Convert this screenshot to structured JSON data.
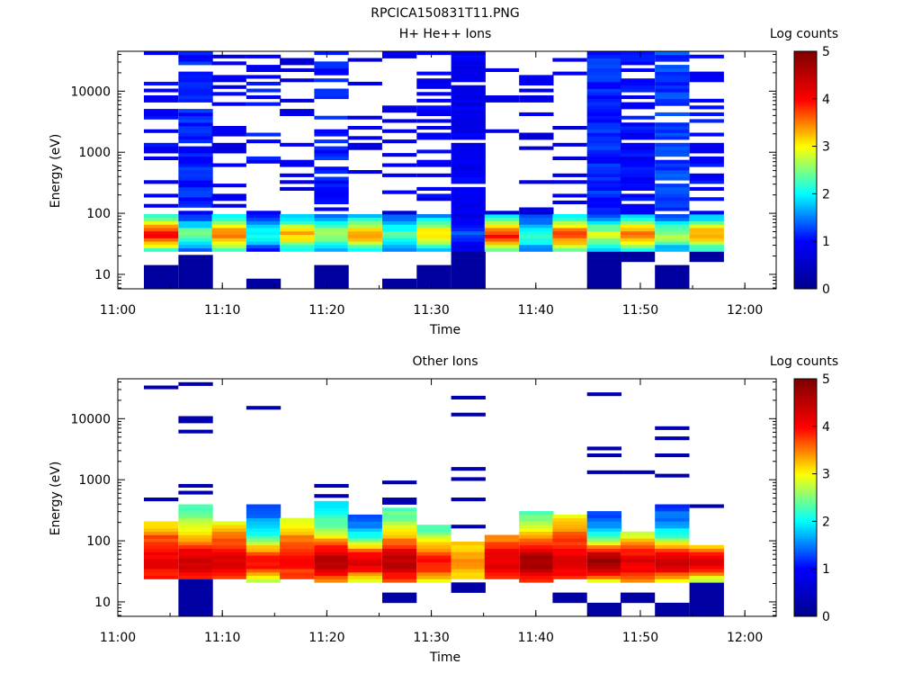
{
  "figure_title": "RPCICA150831T11.PNG",
  "colors": {
    "colormap": [
      "#00008f",
      "#0000ff",
      "#00ffff",
      "#ffff00",
      "#ff0000",
      "#800000"
    ],
    "axes": "#000000",
    "background": "#ffffff"
  },
  "chart_data": [
    {
      "type": "heatmap",
      "title": "H+ He++ Ions",
      "xlabel": "Time",
      "ylabel": "Energy (eV)",
      "colorbar_label": "Log counts",
      "colorbar_range": [
        0,
        5
      ],
      "colorbar_ticks": [
        "0",
        "1",
        "2",
        "3",
        "4",
        "5"
      ],
      "x_ticks": [
        "11:00",
        "11:10",
        "11:20",
        "11:30",
        "11:40",
        "11:50",
        "12:00"
      ],
      "x_range_minutes": [
        0,
        63
      ],
      "y_scale": "log",
      "y_range": [
        5.8,
        45000
      ],
      "y_ticks": [
        "10",
        "100",
        "1000",
        "10000"
      ],
      "y_tick_values": [
        10,
        100,
        1000,
        10000
      ],
      "time_bins_minutes": [
        2.5,
        5.8,
        9.0,
        12.3,
        15.5,
        18.8,
        22.0,
        25.3,
        28.6,
        31.9,
        35.1,
        38.4,
        41.6,
        44.9,
        48.1,
        51.4,
        54.7
      ],
      "bins": [
        {
          "dense": 0.4,
          "high_level": 0.75,
          "low_level": 4.0,
          "has_low": true,
          "low_start": 5.8,
          "low_end": 15
        },
        {
          "dense": 0.95,
          "high_level": 0.95,
          "low_level": 2.4,
          "has_low": true,
          "low_start": 5.8,
          "low_end": 20
        },
        {
          "dense": 0.3,
          "high_level": 0.7,
          "low_level": 3.6,
          "has_low": false
        },
        {
          "dense": 0.4,
          "high_level": 0.85,
          "low_level": 2.0,
          "has_low": true,
          "low_start": 5.8,
          "low_end": 9
        },
        {
          "dense": 0.25,
          "high_level": 0.6,
          "low_level": 3.3,
          "has_low": false
        },
        {
          "dense": 0.65,
          "high_level": 0.9,
          "low_level": 2.6,
          "has_low": true,
          "low_start": 5.8,
          "low_end": 15
        },
        {
          "dense": 0.15,
          "high_level": 0.6,
          "low_level": 3.4,
          "has_low": false
        },
        {
          "dense": 0.35,
          "high_level": 0.6,
          "low_level": 2.3,
          "has_low": true,
          "low_start": 5.8,
          "low_end": 9
        },
        {
          "dense": 0.45,
          "high_level": 0.7,
          "low_level": 3.2,
          "has_low": true,
          "low_start": 5.8,
          "low_end": 15
        },
        {
          "dense": 0.95,
          "high_level": 0.7,
          "low_level": 1.4,
          "has_low": true,
          "low_start": 5.8,
          "low_end": 26
        },
        {
          "dense": 0.05,
          "high_level": 0.6,
          "low_level": 3.9,
          "has_low": false
        },
        {
          "dense": 0.25,
          "high_level": 0.6,
          "low_level": 2.3,
          "has_low": false
        },
        {
          "dense": 0.2,
          "high_level": 0.6,
          "low_level": 3.8,
          "has_low": false
        },
        {
          "dense": 1.0,
          "high_level": 0.95,
          "low_level": 2.8,
          "has_low": true,
          "low_start": 5.8,
          "low_end": 25
        },
        {
          "dense": 0.7,
          "high_level": 0.8,
          "low_level": 3.5,
          "has_low": true,
          "low_start": 16,
          "low_end": 25
        },
        {
          "dense": 0.85,
          "high_level": 1.05,
          "low_level": 2.7,
          "has_low": true,
          "low_start": 5.8,
          "low_end": 15
        },
        {
          "dense": 0.55,
          "high_level": 0.8,
          "low_level": 3.4,
          "has_low": true,
          "low_start": 16,
          "low_end": 25
        }
      ]
    },
    {
      "type": "heatmap",
      "title": "Other Ions",
      "xlabel": "Time",
      "ylabel": "Energy (eV)",
      "colorbar_label": "Log counts",
      "colorbar_range": [
        0,
        5
      ],
      "colorbar_ticks": [
        "0",
        "1",
        "2",
        "3",
        "4",
        "5"
      ],
      "x_ticks": [
        "11:00",
        "11:10",
        "11:20",
        "11:30",
        "11:40",
        "11:50",
        "12:00"
      ],
      "x_range_minutes": [
        0,
        63
      ],
      "y_scale": "log",
      "y_range": [
        5.8,
        45000
      ],
      "y_ticks": [
        "10",
        "100",
        "1000",
        "10000"
      ],
      "y_tick_values": [
        10,
        100,
        1000,
        10000
      ],
      "time_bins_minutes": [
        2.5,
        5.8,
        9.0,
        12.3,
        15.5,
        18.8,
        22.0,
        25.3,
        28.6,
        31.9,
        35.1,
        38.4,
        41.6,
        44.9,
        48.1,
        51.4,
        54.7
      ],
      "bins": [
        {
          "top": 200,
          "peak": 4.1,
          "base_level": 3.5,
          "base": 25,
          "lines": [
            33000,
            500
          ],
          "low_start": null,
          "low_end": null
        },
        {
          "top": 400,
          "peak": 4.4,
          "base_level": 3.0,
          "base": 25,
          "lines": [
            35000,
            11000,
            9000,
            6500,
            800,
            600
          ],
          "low_start": 5.8,
          "low_end": 24
        },
        {
          "top": 210,
          "peak": 4.3,
          "base_level": 3.3,
          "base": 25,
          "lines": [],
          "low_start": null,
          "low_end": null
        },
        {
          "top": 420,
          "peak": 4.0,
          "base_level": 1.8,
          "base": 22,
          "lines": [
            15000
          ],
          "low_start": null,
          "low_end": null
        },
        {
          "top": 230,
          "peak": 3.9,
          "base_level": 3.3,
          "base": 25,
          "lines": [],
          "low_start": null,
          "low_end": null
        },
        {
          "top": 430,
          "peak": 4.6,
          "base_level": 2.6,
          "base": 22,
          "lines": [
            800,
            550
          ],
          "low_start": null,
          "low_end": null
        },
        {
          "top": 260,
          "peak": 4.3,
          "base_level": 1.5,
          "base": 22,
          "lines": [],
          "low_start": null,
          "low_end": null
        },
        {
          "top": 330,
          "peak": 4.5,
          "base_level": 2.9,
          "base": 22,
          "lines": [
            950,
            450,
            400
          ],
          "low_start": 10,
          "low_end": 14
        },
        {
          "top": 180,
          "peak": 4.0,
          "base_level": 2.3,
          "base": 22,
          "lines": [],
          "low_start": null,
          "low_end": null
        },
        {
          "top": 95,
          "peak": 3.4,
          "base_level": 2.9,
          "base": 25,
          "lines": [
            21000,
            12000,
            1600,
            1000,
            500,
            170
          ],
          "low_start": 15,
          "low_end": 22
        },
        {
          "top": 120,
          "peak": 4.2,
          "base_level": 3.2,
          "base": 25,
          "lines": [],
          "low_start": null,
          "low_end": null
        },
        {
          "top": 320,
          "peak": 4.7,
          "base_level": 2.9,
          "base": 22,
          "lines": [],
          "low_start": null,
          "low_end": null
        },
        {
          "top": 260,
          "peak": 4.2,
          "base_level": 3.5,
          "base": 25,
          "lines": [],
          "low_start": 10,
          "low_end": 14
        },
        {
          "top": 290,
          "peak": 4.8,
          "base_level": 1.5,
          "base": 22,
          "lines": [
            26000,
            3300,
            2600,
            1300
          ],
          "low_start": 5.8,
          "low_end": 10
        },
        {
          "top": 140,
          "peak": 4.2,
          "base_level": 2.6,
          "base": 22,
          "lines": [
            1300
          ],
          "low_start": 10,
          "low_end": 14
        },
        {
          "top": 380,
          "peak": 4.4,
          "base_level": 1.7,
          "base": 22,
          "lines": [
            7500,
            5000,
            2600,
            1200
          ],
          "low_start": 5.8,
          "low_end": 10
        },
        {
          "top": 90,
          "peak": 4.3,
          "base_level": 1.2,
          "base": 22,
          "lines": [
            350
          ],
          "low_start": 5.8,
          "low_end": 20
        }
      ]
    }
  ]
}
